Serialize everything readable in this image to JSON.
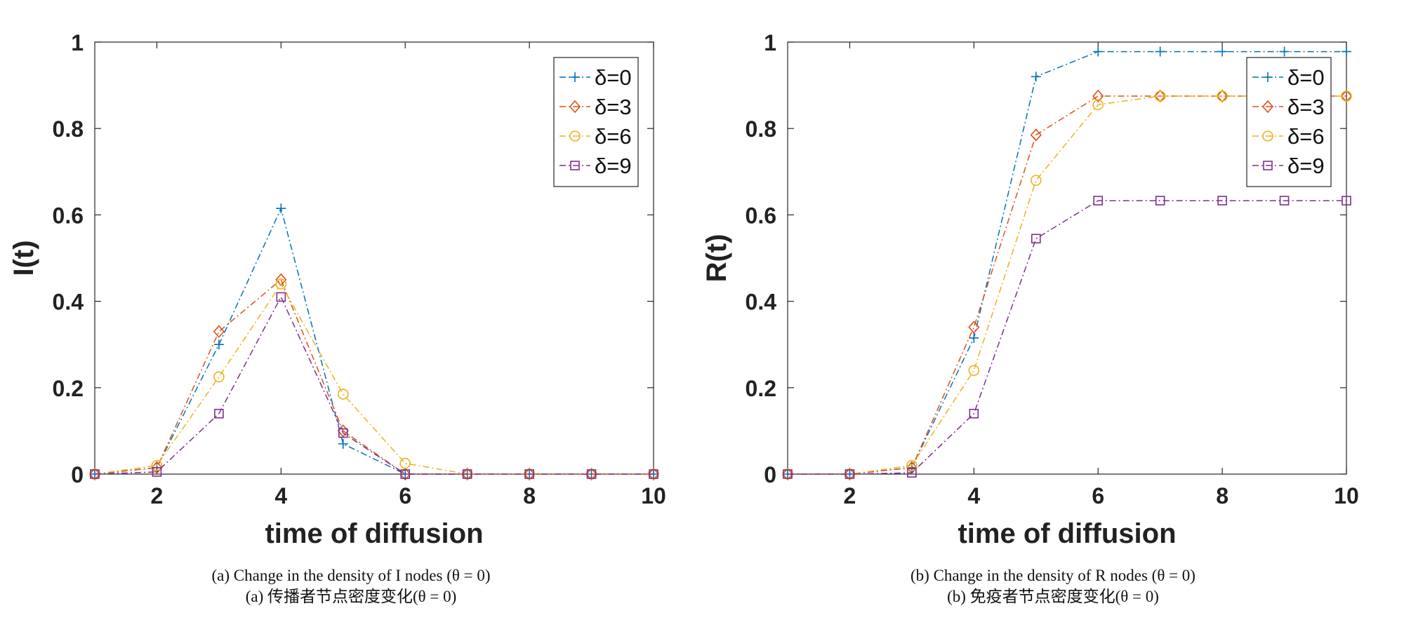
{
  "colors": {
    "delta0": "#0072BD",
    "delta3": "#D95319",
    "delta6": "#EDB120",
    "delta9": "#7E2F8E"
  },
  "chart_data": [
    {
      "type": "line",
      "xlabel": "time of diffusion",
      "ylabel": "I(t)",
      "xlim": [
        1,
        10
      ],
      "ylim": [
        0,
        1
      ],
      "xticks": [
        "2",
        "4",
        "6",
        "8",
        "10"
      ],
      "yticks": [
        "0",
        "0.2",
        "0.4",
        "0.6",
        "0.8",
        "1"
      ],
      "legend": "top-right",
      "x": [
        1,
        2,
        3,
        4,
        5,
        6,
        7,
        8,
        9,
        10
      ],
      "series": [
        {
          "name": "δ=0",
          "marker": "plus",
          "values": [
            0,
            0.015,
            0.3,
            0.615,
            0.07,
            0.0,
            0,
            0,
            0,
            0
          ]
        },
        {
          "name": "δ=3",
          "marker": "diamond",
          "values": [
            0,
            0.015,
            0.33,
            0.45,
            0.1,
            0.0,
            0,
            0,
            0,
            0
          ]
        },
        {
          "name": "δ=6",
          "marker": "circle",
          "values": [
            0,
            0.02,
            0.225,
            0.44,
            0.185,
            0.025,
            0,
            0,
            0,
            0
          ]
        },
        {
          "name": "δ=9",
          "marker": "square",
          "values": [
            0,
            0.005,
            0.14,
            0.41,
            0.095,
            0.0,
            0,
            0,
            0,
            0
          ]
        }
      ],
      "caption_en": "(a) Change in the density of I nodes (θ = 0)",
      "caption_zh": "(a) 传播者节点密度变化(θ = 0)"
    },
    {
      "type": "line",
      "xlabel": "time of diffusion",
      "ylabel": "R(t)",
      "xlim": [
        1,
        10
      ],
      "ylim": [
        0,
        1
      ],
      "xticks": [
        "2",
        "4",
        "6",
        "8",
        "10"
      ],
      "yticks": [
        "0",
        "0.2",
        "0.4",
        "0.6",
        "0.8",
        "1"
      ],
      "legend": "top-right",
      "x": [
        1,
        2,
        3,
        4,
        5,
        6,
        7,
        8,
        9,
        10
      ],
      "series": [
        {
          "name": "δ=0",
          "marker": "plus",
          "values": [
            0,
            0,
            0.015,
            0.315,
            0.92,
            0.978,
            0.978,
            0.978,
            0.978,
            0.978
          ]
        },
        {
          "name": "δ=3",
          "marker": "diamond",
          "values": [
            0,
            0,
            0.015,
            0.34,
            0.785,
            0.875,
            0.875,
            0.875,
            0.875,
            0.875
          ]
        },
        {
          "name": "δ=6",
          "marker": "circle",
          "values": [
            0,
            0,
            0.02,
            0.24,
            0.68,
            0.855,
            0.875,
            0.875,
            0.875,
            0.875
          ]
        },
        {
          "name": "δ=9",
          "marker": "square",
          "values": [
            0,
            0,
            0.003,
            0.14,
            0.545,
            0.633,
            0.633,
            0.633,
            0.633,
            0.633
          ]
        }
      ],
      "caption_en": "(b) Change in the density of R nodes (θ = 0)",
      "caption_zh": "(b) 免疫者节点密度变化(θ = 0)"
    }
  ]
}
